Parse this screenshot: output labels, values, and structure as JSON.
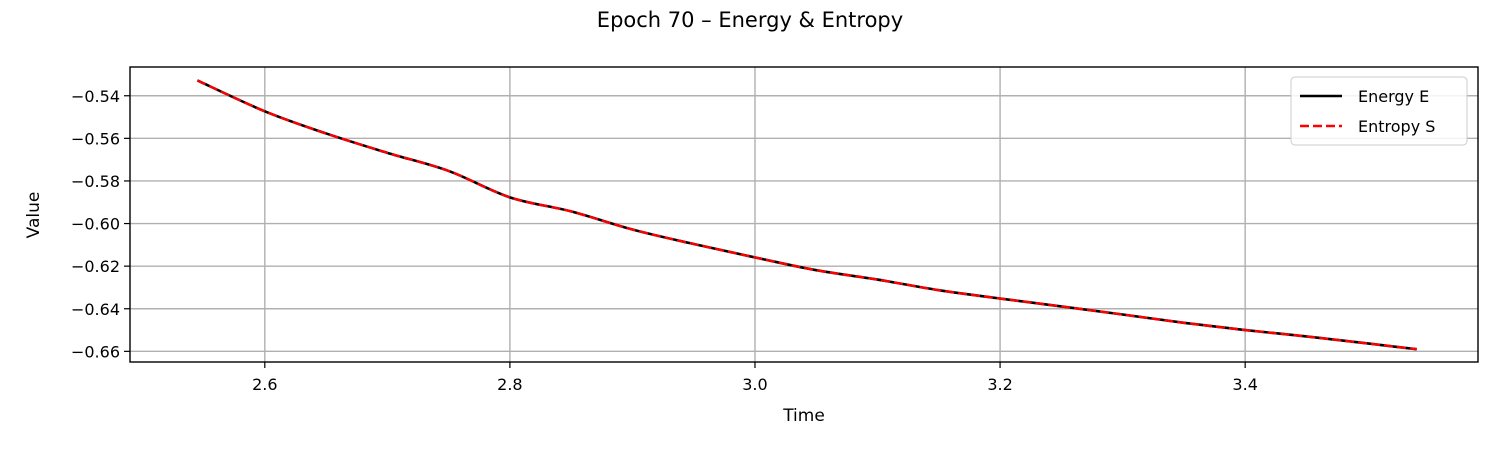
{
  "chart_data": {
    "type": "line",
    "title": "Epoch 70 – Energy & Entropy",
    "xlabel": "Time",
    "ylabel": "Value",
    "xlim": [
      2.49,
      3.59
    ],
    "ylim": [
      -0.665,
      -0.5265
    ],
    "xticks": [
      2.6,
      2.8,
      3.0,
      3.2,
      3.4
    ],
    "xtick_labels": [
      "2.6",
      "2.8",
      "3.0",
      "3.2",
      "3.4"
    ],
    "yticks": [
      -0.54,
      -0.56,
      -0.58,
      -0.6,
      -0.62,
      -0.64,
      -0.66
    ],
    "ytick_labels": [
      "−0.54",
      "−0.56",
      "−0.58",
      "−0.60",
      "−0.62",
      "−0.64",
      "−0.66"
    ],
    "grid": true,
    "legend_position": "top-right",
    "series": [
      {
        "name": "Energy E",
        "color": "#000000",
        "style": "solid",
        "x": [
          2.545,
          2.6,
          2.65,
          2.7,
          2.75,
          2.8,
          2.85,
          2.9,
          2.95,
          3.0,
          3.05,
          3.1,
          3.15,
          3.2,
          3.25,
          3.3,
          3.35,
          3.4,
          3.45,
          3.5,
          3.54
        ],
        "y": [
          -0.5328,
          -0.5473,
          -0.5577,
          -0.5668,
          -0.5753,
          -0.5877,
          -0.5943,
          -0.6028,
          -0.6096,
          -0.6159,
          -0.6219,
          -0.6263,
          -0.6313,
          -0.6352,
          -0.6389,
          -0.6427,
          -0.6466,
          -0.65,
          -0.653,
          -0.6563,
          -0.659
        ]
      },
      {
        "name": "Entropy S",
        "color": "#ff0000",
        "style": "dashed",
        "x": [
          2.545,
          2.6,
          2.65,
          2.7,
          2.75,
          2.8,
          2.85,
          2.9,
          2.95,
          3.0,
          3.05,
          3.1,
          3.15,
          3.2,
          3.25,
          3.3,
          3.35,
          3.4,
          3.45,
          3.5,
          3.54
        ],
        "y": [
          -0.5328,
          -0.5473,
          -0.5577,
          -0.5668,
          -0.5753,
          -0.5877,
          -0.5943,
          -0.6028,
          -0.6096,
          -0.6159,
          -0.6219,
          -0.6263,
          -0.6313,
          -0.6352,
          -0.6389,
          -0.6427,
          -0.6466,
          -0.65,
          -0.653,
          -0.6563,
          -0.659
        ]
      }
    ]
  }
}
